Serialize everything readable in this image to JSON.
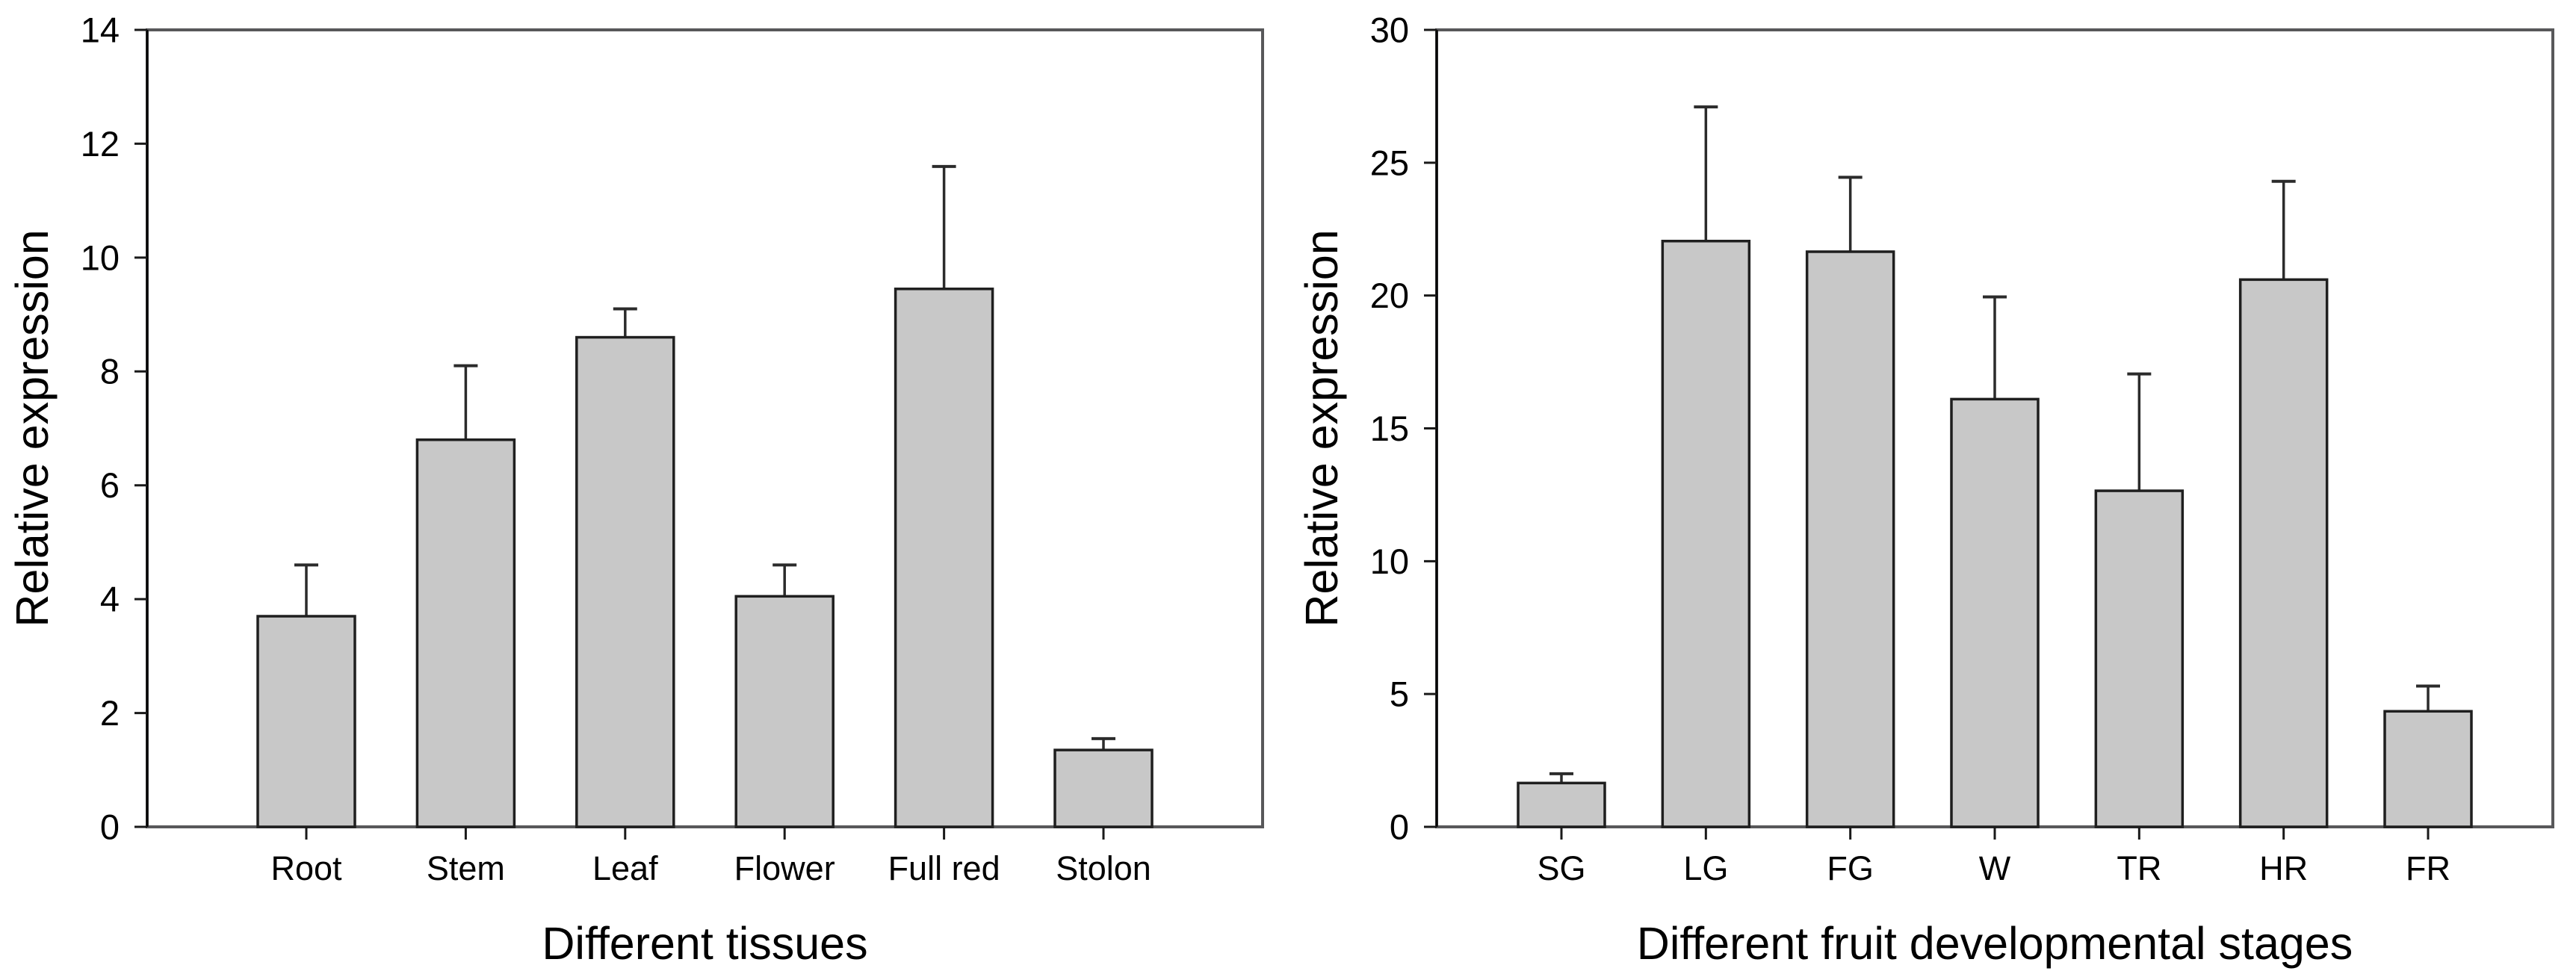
{
  "figure": {
    "background": "#ffffff",
    "panel_count": 2
  },
  "chart_data": [
    {
      "type": "bar",
      "title": "",
      "xlabel": "Different tissues",
      "ylabel": "Relative expression",
      "categories": [
        "Root",
        "Stem",
        "Leaf",
        "Flower",
        "Full red",
        "Stolon"
      ],
      "values": [
        3.7,
        6.8,
        8.6,
        4.05,
        9.45,
        1.35
      ],
      "errors_upper": [
        0.9,
        1.3,
        0.5,
        0.55,
        2.15,
        0.2
      ],
      "ylim": [
        0,
        14
      ],
      "yticks": [
        0,
        2,
        4,
        6,
        8,
        10,
        12,
        14
      ],
      "grid": false,
      "legend": "none",
      "frame": "full-box",
      "error_caps": "upper-only",
      "bar_fill": "#c8c8c8",
      "bar_stroke": "#1f1f1f"
    },
    {
      "type": "bar",
      "title": "",
      "xlabel": "Different fruit developmental stages",
      "ylabel": "Relative expression",
      "categories": [
        "SG",
        "LG",
        "FG",
        "W",
        "TR",
        "HR",
        "FR"
      ],
      "values": [
        1.65,
        22.05,
        21.65,
        16.1,
        12.65,
        20.6,
        4.35
      ],
      "errors_upper": [
        0.35,
        5.05,
        2.8,
        3.85,
        4.4,
        3.7,
        0.95
      ],
      "ylim": [
        0,
        30
      ],
      "yticks": [
        0,
        5,
        10,
        15,
        20,
        25,
        30
      ],
      "grid": false,
      "legend": "none",
      "frame": "full-box",
      "error_caps": "upper-only",
      "bar_fill": "#c8c8c8",
      "bar_stroke": "#1f1f1f"
    }
  ],
  "style": {
    "frame_color": "#58585a",
    "axis_color": "#000000",
    "tick_color": "#1a1a1a",
    "error_color": "#2b2b2b",
    "text_color": "#000000"
  }
}
